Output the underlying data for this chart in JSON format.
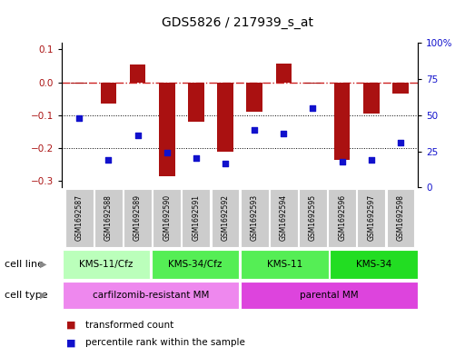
{
  "title": "GDS5826 / 217939_s_at",
  "samples": [
    "GSM1692587",
    "GSM1692588",
    "GSM1692589",
    "GSM1692590",
    "GSM1692591",
    "GSM1692592",
    "GSM1692593",
    "GSM1692594",
    "GSM1692595",
    "GSM1692596",
    "GSM1692597",
    "GSM1692598"
  ],
  "bar_values": [
    -0.005,
    -0.065,
    0.055,
    -0.285,
    -0.12,
    -0.21,
    -0.09,
    0.057,
    -0.005,
    -0.235,
    -0.095,
    -0.035
  ],
  "dot_values": [
    0.48,
    0.19,
    0.36,
    0.24,
    0.2,
    0.165,
    0.4,
    0.37,
    0.55,
    0.18,
    0.19,
    0.31
  ],
  "bar_color": "#aa1111",
  "dot_color": "#1111cc",
  "zero_line_color": "#cc2222",
  "grid_color": "#000000",
  "ylim_left": [
    -0.32,
    0.12
  ],
  "ylim_right": [
    0.0,
    1.0
  ],
  "yticks_left": [
    -0.3,
    -0.2,
    -0.1,
    0.0,
    0.1
  ],
  "yticks_right": [
    0.0,
    0.25,
    0.5,
    0.75,
    1.0
  ],
  "yticklabels_right": [
    "0",
    "25",
    "50",
    "75",
    "100%"
  ],
  "cell_line_groups": [
    {
      "label": "KMS-11/Cfz",
      "start": 0,
      "end": 3,
      "color": "#bbffbb"
    },
    {
      "label": "KMS-34/Cfz",
      "start": 3,
      "end": 6,
      "color": "#55ee55"
    },
    {
      "label": "KMS-11",
      "start": 6,
      "end": 9,
      "color": "#55ee55"
    },
    {
      "label": "KMS-34",
      "start": 9,
      "end": 12,
      "color": "#22dd22"
    }
  ],
  "cell_type_groups": [
    {
      "label": "carfilzomib-resistant MM",
      "start": 0,
      "end": 6,
      "color": "#ee88ee"
    },
    {
      "label": "parental MM",
      "start": 6,
      "end": 12,
      "color": "#dd44dd"
    }
  ],
  "cell_line_label": "cell line",
  "cell_type_label": "cell type",
  "legend_bar_label": "transformed count",
  "legend_dot_label": "percentile rank within the sample",
  "sample_box_color": "#cccccc",
  "background_color": "#ffffff",
  "tick_fontsize": 7.5,
  "label_fontsize": 8
}
